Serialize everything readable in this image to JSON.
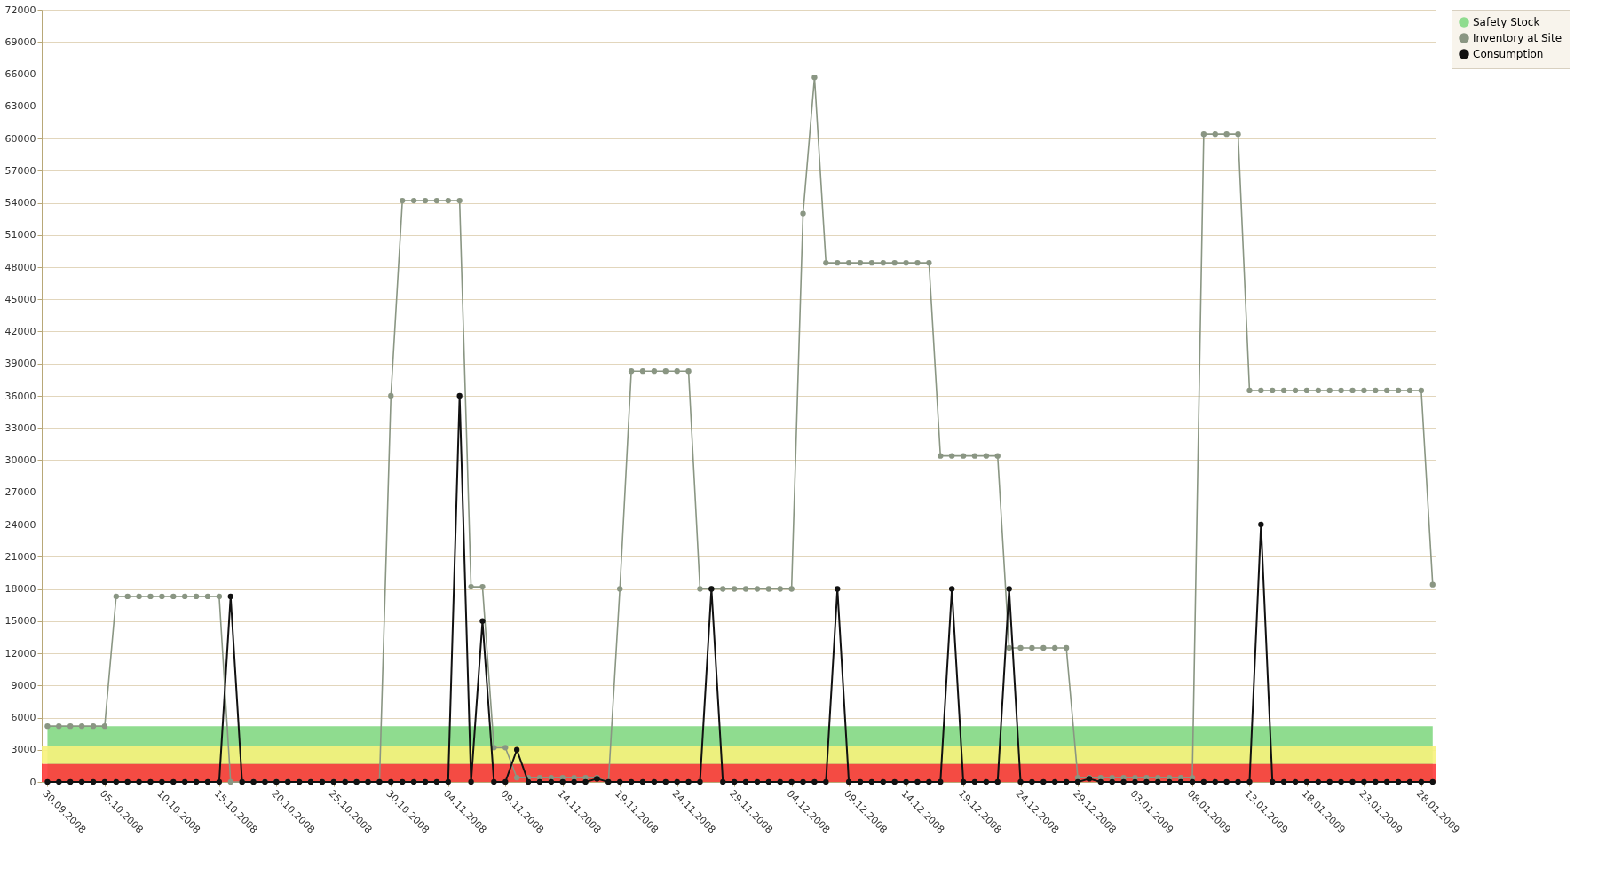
{
  "chart_data": {
    "type": "line",
    "x": [
      "2008-09-30",
      "2008-10-01",
      "2008-10-02",
      "2008-10-03",
      "2008-10-04",
      "2008-10-05",
      "2008-10-06",
      "2008-10-07",
      "2008-10-08",
      "2008-10-09",
      "2008-10-10",
      "2008-10-11",
      "2008-10-12",
      "2008-10-13",
      "2008-10-14",
      "2008-10-15",
      "2008-10-16",
      "2008-10-17",
      "2008-10-18",
      "2008-10-19",
      "2008-10-20",
      "2008-10-21",
      "2008-10-22",
      "2008-10-23",
      "2008-10-24",
      "2008-10-25",
      "2008-10-26",
      "2008-10-27",
      "2008-10-28",
      "2008-10-29",
      "2008-10-30",
      "2008-10-31",
      "2008-11-01",
      "2008-11-02",
      "2008-11-03",
      "2008-11-04",
      "2008-11-05",
      "2008-11-06",
      "2008-11-07",
      "2008-11-08",
      "2008-11-09",
      "2008-11-10",
      "2008-11-11",
      "2008-11-12",
      "2008-11-13",
      "2008-11-14",
      "2008-11-15",
      "2008-11-16",
      "2008-11-17",
      "2008-11-18",
      "2008-11-19",
      "2008-11-20",
      "2008-11-21",
      "2008-11-22",
      "2008-11-23",
      "2008-11-24",
      "2008-11-25",
      "2008-11-26",
      "2008-11-27",
      "2008-11-28",
      "2008-11-29",
      "2008-11-30",
      "2008-12-01",
      "2008-12-02",
      "2008-12-03",
      "2008-12-04",
      "2008-12-05",
      "2008-12-06",
      "2008-12-07",
      "2008-12-08",
      "2008-12-09",
      "2008-12-10",
      "2008-12-11",
      "2008-12-12",
      "2008-12-13",
      "2008-12-14",
      "2008-12-15",
      "2008-12-16",
      "2008-12-17",
      "2008-12-18",
      "2008-12-19",
      "2008-12-20",
      "2008-12-21",
      "2008-12-22",
      "2008-12-23",
      "2008-12-24",
      "2008-12-25",
      "2008-12-26",
      "2008-12-27",
      "2008-12-28",
      "2008-12-29",
      "2008-12-30",
      "2008-12-31",
      "2009-01-01",
      "2009-01-02",
      "2009-01-03",
      "2009-01-04",
      "2009-01-05",
      "2009-01-06",
      "2009-01-07",
      "2009-01-08",
      "2009-01-09",
      "2009-01-10",
      "2009-01-11",
      "2009-01-12",
      "2009-01-13",
      "2009-01-14",
      "2009-01-15",
      "2009-01-16",
      "2009-01-17",
      "2009-01-18",
      "2009-01-19",
      "2009-01-20",
      "2009-01-21",
      "2009-01-22",
      "2009-01-23",
      "2009-01-24",
      "2009-01-25",
      "2009-01-26",
      "2009-01-27",
      "2009-01-28",
      "2009-01-29"
    ],
    "series": [
      {
        "name": "Safety Stock",
        "type": "area",
        "color": "#8fdc8f",
        "values": [
          5200,
          5200,
          5200,
          5200,
          5200,
          5200,
          5200,
          5200,
          5200,
          5200,
          5200,
          5200,
          5200,
          5200,
          5200,
          5200,
          5200,
          5200,
          5200,
          5200,
          5200,
          5200,
          5200,
          5200,
          5200,
          5200,
          5200,
          5200,
          5200,
          5200,
          5200,
          5200,
          5200,
          5200,
          5200,
          5200,
          5200,
          5200,
          5200,
          5200,
          5200,
          5200,
          5200,
          5200,
          5200,
          5200,
          5200,
          5200,
          5200,
          5200,
          5200,
          5200,
          5200,
          5200,
          5200,
          5200,
          5200,
          5200,
          5200,
          5200,
          5200,
          5200,
          5200,
          5200,
          5200,
          5200,
          5200,
          5200,
          5200,
          5200,
          5200,
          5200,
          5200,
          5200,
          5200,
          5200,
          5200,
          5200,
          5200,
          5200,
          5200,
          5200,
          5200,
          5200,
          5200,
          5200,
          5200,
          5200,
          5200,
          5200,
          5200,
          5200,
          5200,
          5200,
          5200,
          5200,
          5200,
          5200,
          5200,
          5200,
          5200,
          5200,
          5200,
          5200,
          5200,
          5200,
          5200,
          5200,
          5200,
          5200,
          5200,
          5200,
          5200,
          5200,
          5200,
          5200,
          5200,
          5200,
          5200,
          5200,
          5200,
          5200
        ]
      },
      {
        "name": "Inventory at Site",
        "marker": "circle",
        "color": "#8a9683",
        "values": [
          5200,
          5200,
          5200,
          5200,
          5200,
          5200,
          17300,
          17300,
          17300,
          17300,
          17300,
          17300,
          17300,
          17300,
          17300,
          17300,
          0,
          0,
          0,
          0,
          0,
          0,
          0,
          0,
          0,
          0,
          0,
          0,
          0,
          0,
          36000,
          54200,
          54200,
          54200,
          54200,
          54200,
          54200,
          18200,
          18200,
          3200,
          3200,
          400,
          400,
          400,
          400,
          400,
          400,
          400,
          400,
          0,
          18000,
          38300,
          38300,
          38300,
          38300,
          38300,
          38300,
          18000,
          18000,
          18000,
          18000,
          18000,
          18000,
          18000,
          18000,
          18000,
          53000,
          65700,
          48400,
          48400,
          48400,
          48400,
          48400,
          48400,
          48400,
          48400,
          48400,
          48400,
          30400,
          30400,
          30400,
          30400,
          30400,
          30400,
          12500,
          12500,
          12500,
          12500,
          12500,
          12500,
          400,
          400,
          400,
          400,
          400,
          400,
          400,
          400,
          400,
          400,
          400,
          60400,
          60400,
          60400,
          60400,
          36500,
          36500,
          36500,
          36500,
          36500,
          36500,
          36500,
          36500,
          36500,
          36500,
          36500,
          36500,
          36500,
          36500,
          36500,
          36500,
          18400
        ]
      },
      {
        "name": "Consumption",
        "marker": "circle",
        "color": "#111111",
        "values": [
          0,
          0,
          0,
          0,
          0,
          0,
          0,
          0,
          0,
          0,
          0,
          0,
          0,
          0,
          0,
          0,
          17300,
          0,
          0,
          0,
          0,
          0,
          0,
          0,
          0,
          0,
          0,
          0,
          0,
          0,
          0,
          0,
          0,
          0,
          0,
          0,
          36000,
          0,
          15000,
          0,
          0,
          3000,
          0,
          0,
          0,
          0,
          0,
          0,
          300,
          0,
          0,
          0,
          0,
          0,
          0,
          0,
          0,
          0,
          18000,
          0,
          0,
          0,
          0,
          0,
          0,
          0,
          0,
          0,
          0,
          18000,
          0,
          0,
          0,
          0,
          0,
          0,
          0,
          0,
          0,
          18000,
          0,
          0,
          0,
          0,
          18000,
          0,
          0,
          0,
          0,
          0,
          0,
          300,
          0,
          0,
          0,
          0,
          0,
          0,
          0,
          0,
          0,
          0,
          0,
          0,
          0,
          0,
          24000,
          0,
          0,
          0,
          0,
          0,
          0,
          0,
          0,
          0,
          0,
          0,
          0,
          0,
          0,
          0
        ]
      }
    ],
    "bands": [
      {
        "axis": "y",
        "from": 0,
        "to": 1700,
        "color": "#ff3b3b"
      },
      {
        "axis": "y",
        "from": 1700,
        "to": 3400,
        "color": "#f7f27c"
      }
    ],
    "xlim": [
      "2008-09-29T12:00",
      "2009-01-29T06:00"
    ],
    "xticks": [
      {
        "value": "2008-09-30",
        "label": "30.09.2008"
      },
      {
        "value": "2008-10-05",
        "label": "05.10.2008"
      },
      {
        "value": "2008-10-10",
        "label": "10.10.2008"
      },
      {
        "value": "2008-10-15",
        "label": "15.10.2008"
      },
      {
        "value": "2008-10-20",
        "label": "20.10.2008"
      },
      {
        "value": "2008-10-25",
        "label": "25.10.2008"
      },
      {
        "value": "2008-10-30",
        "label": "30.10.2008"
      },
      {
        "value": "2008-11-04",
        "label": "04.11.2008"
      },
      {
        "value": "2008-11-09",
        "label": "09.11.2008"
      },
      {
        "value": "2008-11-14",
        "label": "14.11.2008"
      },
      {
        "value": "2008-11-19",
        "label": "19.11.2008"
      },
      {
        "value": "2008-11-24",
        "label": "24.11.2008"
      },
      {
        "value": "2008-11-29",
        "label": "29.11.2008"
      },
      {
        "value": "2008-12-04",
        "label": "04.12.2008"
      },
      {
        "value": "2008-12-09",
        "label": "09.12.2008"
      },
      {
        "value": "2008-12-14",
        "label": "14.12.2008"
      },
      {
        "value": "2008-12-19",
        "label": "19.12.2008"
      },
      {
        "value": "2008-12-24",
        "label": "24.12.2008"
      },
      {
        "value": "2008-12-29",
        "label": "29.12.2008"
      },
      {
        "value": "2009-01-03",
        "label": "03.01.2009"
      },
      {
        "value": "2009-01-08",
        "label": "08.01.2009"
      },
      {
        "value": "2009-01-13",
        "label": "13.01.2009"
      },
      {
        "value": "2009-01-18",
        "label": "18.01.2009"
      },
      {
        "value": "2009-01-23",
        "label": "23.01.2009"
      },
      {
        "value": "2009-01-28",
        "label": "28.01.2009"
      }
    ],
    "ylim": [
      0,
      72000
    ],
    "yticks": [
      0,
      3000,
      6000,
      9000,
      12000,
      15000,
      18000,
      21000,
      24000,
      27000,
      30000,
      33000,
      36000,
      39000,
      42000,
      45000,
      48000,
      51000,
      54000,
      57000,
      60000,
      63000,
      66000,
      69000,
      72000
    ],
    "grid": "y",
    "legend": "top right",
    "line_style": "solid"
  }
}
